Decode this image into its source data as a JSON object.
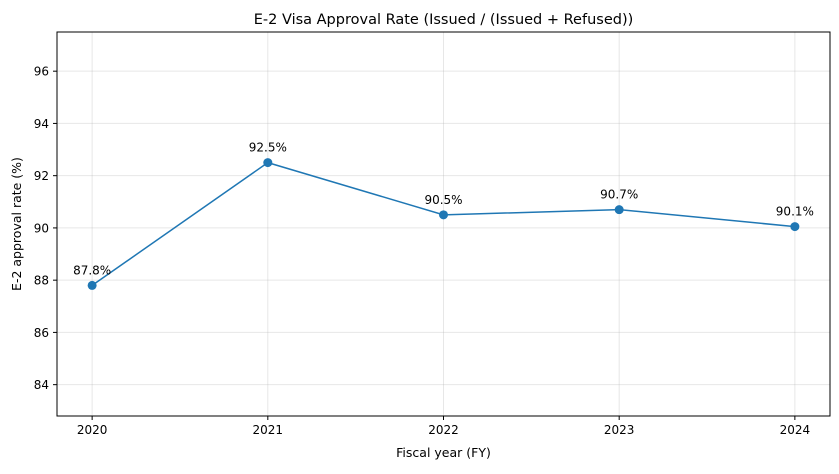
{
  "chart_data": {
    "type": "line",
    "title": "E-2 Visa Approval Rate (Issued / (Issued + Refused))",
    "xlabel": "Fiscal year (FY)",
    "ylabel": "E-2 approval rate (%)",
    "x": [
      2020,
      2021,
      2022,
      2023,
      2024
    ],
    "values": [
      87.8,
      92.5,
      90.5,
      90.7,
      90.05
    ],
    "data_labels": [
      "87.8%",
      "92.5%",
      "90.5%",
      "90.7%",
      "90.1%"
    ],
    "xticks": [
      "2020",
      "2021",
      "2022",
      "2023",
      "2024"
    ],
    "yticks": [
      "84",
      "86",
      "88",
      "90",
      "92",
      "94",
      "96"
    ],
    "xlim": [
      2019.8,
      2024.2
    ],
    "ylim": [
      82.8,
      97.5
    ],
    "grid": true,
    "color": "#1f77b4",
    "marker": "circle"
  }
}
